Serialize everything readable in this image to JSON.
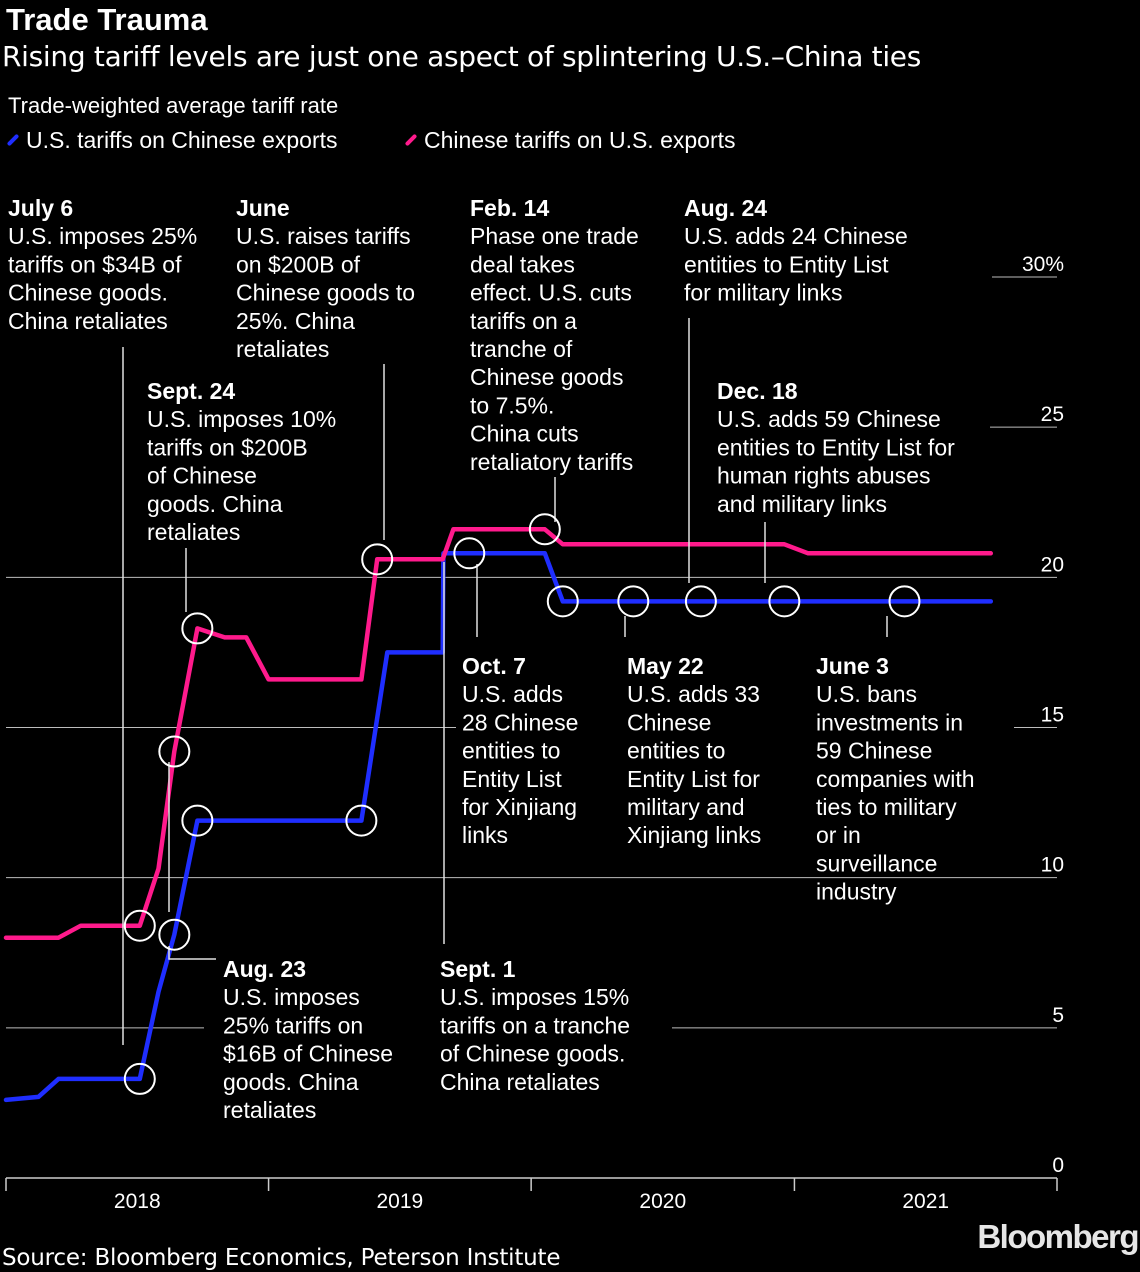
{
  "header": {
    "title": "Trade Trauma",
    "subtitle": "Rising tariff levels are just one aspect of splintering U.S.–China ties",
    "measure": "Trade-weighted average tariff rate"
  },
  "source": "Source: Bloomberg Economics, Peterson Institute",
  "logo": "Bloomberg",
  "colors": {
    "us": "#1f2eff",
    "china": "#ff1a8c",
    "background": "#000000",
    "text": "#ffffff"
  },
  "chart_data": {
    "type": "line",
    "title": "Trade Trauma",
    "subtitle": "Rising tariff levels are just one aspect of splintering U.S.–China ties",
    "ylabel": "Trade-weighted average tariff rate",
    "ylim": [
      0,
      30
    ],
    "yticks": [
      0,
      5,
      10,
      15,
      20,
      25,
      30
    ],
    "ytick_labels": [
      "0",
      "5",
      "10",
      "15",
      "20",
      "25",
      "30%"
    ],
    "xlim": [
      "2018-01-01",
      "2022-01-01"
    ],
    "x_labels": [
      "2018",
      "2019",
      "2020",
      "2021"
    ],
    "grid": true,
    "legend_position": "top-left",
    "series": [
      {
        "name": "U.S. tariffs on Chinese exports",
        "color": "#1f2eff",
        "points": [
          [
            "2018-01-01",
            2.6
          ],
          [
            "2018-02-15",
            2.7
          ],
          [
            "2018-03-15",
            3.3
          ],
          [
            "2018-07-05",
            3.3
          ],
          [
            "2018-07-06",
            3.3
          ],
          [
            "2018-08-01",
            6.2
          ],
          [
            "2018-08-23",
            8.1
          ],
          [
            "2018-09-24",
            11.9
          ],
          [
            "2019-05-01",
            11.9
          ],
          [
            "2019-05-10",
            11.9
          ],
          [
            "2019-06-15",
            17.5
          ],
          [
            "2019-08-31",
            17.5
          ],
          [
            "2019-09-01",
            20.8
          ],
          [
            "2019-10-07",
            20.8
          ],
          [
            "2020-01-20",
            20.8
          ],
          [
            "2020-02-14",
            19.2
          ],
          [
            "2020-05-22",
            19.2
          ],
          [
            "2020-08-24",
            19.2
          ],
          [
            "2020-12-18",
            19.2
          ],
          [
            "2021-06-03",
            19.2
          ],
          [
            "2021-10-01",
            19.2
          ]
        ]
      },
      {
        "name": "Chinese tariffs on U.S. exports",
        "color": "#ff1a8c",
        "points": [
          [
            "2018-01-01",
            8.0
          ],
          [
            "2018-03-15",
            8.0
          ],
          [
            "2018-04-15",
            8.4
          ],
          [
            "2018-07-05",
            8.4
          ],
          [
            "2018-07-06",
            8.4
          ],
          [
            "2018-08-01",
            10.3
          ],
          [
            "2018-08-23",
            14.2
          ],
          [
            "2018-09-24",
            18.3
          ],
          [
            "2018-11-01",
            18.0
          ],
          [
            "2018-12-01",
            18.0
          ],
          [
            "2019-01-01",
            16.6
          ],
          [
            "2019-05-10",
            16.6
          ],
          [
            "2019-06-01",
            20.6
          ],
          [
            "2019-08-31",
            20.6
          ],
          [
            "2019-09-15",
            21.6
          ],
          [
            "2020-01-20",
            21.6
          ],
          [
            "2020-02-14",
            21.1
          ],
          [
            "2020-08-24",
            21.1
          ],
          [
            "2020-12-18",
            21.1
          ],
          [
            "2021-01-20",
            20.8
          ],
          [
            "2021-10-01",
            20.8
          ]
        ]
      }
    ],
    "annotations": [
      {
        "head": "July 6",
        "text": [
          "U.S. imposes 25%",
          "tariffs on $34B of",
          "Chinese goods.",
          "China retaliates"
        ]
      },
      {
        "head": "June",
        "text": [
          "U.S. raises tariffs",
          "on $200B of",
          "Chinese goods to",
          "25%. China",
          "retaliates"
        ]
      },
      {
        "head": "Feb. 14",
        "text": [
          "Phase one trade",
          "deal takes",
          "effect. U.S. cuts",
          "tariffs on a",
          "tranche of",
          "Chinese goods",
          "to 7.5%.",
          "China cuts",
          "retaliatory tariffs"
        ]
      },
      {
        "head": "Aug. 24",
        "text": [
          "U.S. adds 24 Chinese",
          "entities to Entity List",
          "for military links"
        ]
      },
      {
        "head": "Sept. 24",
        "text": [
          "U.S. imposes 10%",
          "tariffs on $200B",
          "of Chinese",
          "goods. China",
          "retaliates"
        ]
      },
      {
        "head": "Dec. 18",
        "text": [
          "U.S. adds 59 Chinese",
          "entities to Entity List for",
          "human rights abuses",
          "and military links"
        ]
      },
      {
        "head": "Oct. 7",
        "text": [
          "U.S. adds",
          "28 Chinese",
          "entities to",
          "Entity List",
          "for Xinjiang",
          "links"
        ]
      },
      {
        "head": "May 22",
        "text": [
          "U.S. adds 33",
          "Chinese",
          "entities to",
          "Entity List for",
          "military and",
          "Xinjiang links"
        ]
      },
      {
        "head": "June 3",
        "text": [
          "U.S. bans",
          "investments in",
          "59 Chinese",
          "companies with",
          "ties to military",
          "or in",
          "surveillance",
          "industry"
        ]
      },
      {
        "head": "Aug. 23",
        "text": [
          "U.S. imposes",
          "25% tariffs on",
          "$16B of Chinese",
          "goods. China",
          "retaliates"
        ]
      },
      {
        "head": "Sept. 1",
        "text": [
          "U.S. imposes 15%",
          "tariffs on a tranche",
          "of Chinese goods.",
          "China retaliates"
        ]
      }
    ]
  }
}
